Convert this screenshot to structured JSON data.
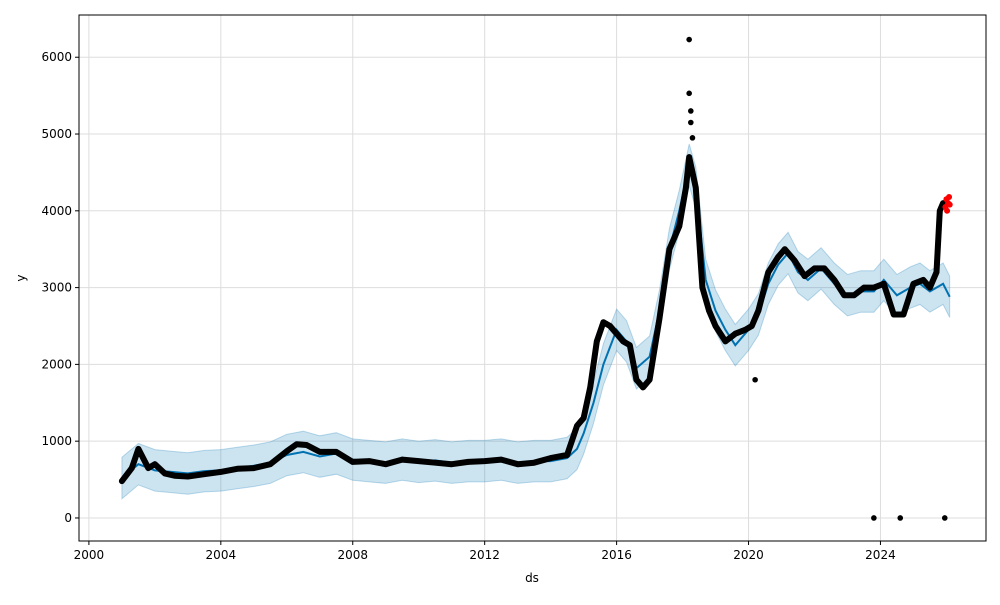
{
  "chart_data": {
    "type": "line",
    "xlabel": "ds",
    "ylabel": "y",
    "x_ticks": [
      "2000",
      "2004",
      "2008",
      "2012",
      "2016",
      "2020",
      "2024"
    ],
    "y_ticks": [
      "0",
      "1000",
      "2000",
      "3000",
      "4000",
      "5000",
      "6000"
    ],
    "xlim": [
      1999.7,
      2027.2
    ],
    "ylim": [
      -300,
      6550
    ],
    "grid": true,
    "colors": {
      "forecast": "#0072B2",
      "band": "#0072B2",
      "observed": "#000000",
      "outlier": "#ff0000",
      "grid": "#dddddd"
    },
    "forecast": {
      "x": [
        2001.0,
        2001.5,
        2002.0,
        2002.5,
        2003.0,
        2003.5,
        2004.0,
        2004.5,
        2005.0,
        2005.5,
        2006.0,
        2006.5,
        2007.0,
        2007.5,
        2008.0,
        2008.5,
        2009.0,
        2009.5,
        2010.0,
        2010.5,
        2011.0,
        2011.5,
        2012.0,
        2012.5,
        2013.0,
        2013.5,
        2014.0,
        2014.5,
        2014.8,
        2015.0,
        2015.3,
        2015.6,
        2016.0,
        2016.3,
        2016.6,
        2017.0,
        2017.3,
        2017.6,
        2017.9,
        2018.2,
        2018.4,
        2018.7,
        2019.0,
        2019.3,
        2019.6,
        2020.0,
        2020.3,
        2020.6,
        2020.9,
        2021.2,
        2021.5,
        2021.8,
        2022.2,
        2022.6,
        2023.0,
        2023.4,
        2023.8,
        2024.1,
        2024.5,
        2024.9,
        2025.2,
        2025.5,
        2025.9,
        2026.1
      ],
      "y": [
        520,
        700,
        620,
        600,
        580,
        610,
        620,
        650,
        680,
        720,
        820,
        860,
        800,
        840,
        760,
        740,
        720,
        760,
        730,
        750,
        720,
        740,
        740,
        760,
        720,
        740,
        740,
        780,
        900,
        1100,
        1500,
        2000,
        2450,
        2300,
        1950,
        2100,
        2700,
        3500,
        4000,
        4600,
        4300,
        3100,
        2700,
        2450,
        2250,
        2450,
        2650,
        3050,
        3300,
        3450,
        3200,
        3100,
        3250,
        3050,
        2900,
        2950,
        2950,
        3100,
        2900,
        3000,
        3050,
        2950,
        3050,
        2880
      ]
    },
    "band_halfwidth": 270,
    "observed": {
      "x": [
        2001.0,
        2001.3,
        2001.5,
        2001.8,
        2002.0,
        2002.3,
        2002.6,
        2003.0,
        2003.5,
        2004.0,
        2004.5,
        2005.0,
        2005.5,
        2006.0,
        2006.3,
        2006.6,
        2007.0,
        2007.5,
        2008.0,
        2008.5,
        2009.0,
        2009.5,
        2010.0,
        2010.5,
        2011.0,
        2011.5,
        2012.0,
        2012.5,
        2013.0,
        2013.5,
        2014.0,
        2014.5,
        2014.8,
        2015.0,
        2015.2,
        2015.4,
        2015.6,
        2015.8,
        2016.0,
        2016.2,
        2016.4,
        2016.6,
        2016.8,
        2017.0,
        2017.3,
        2017.6,
        2017.9,
        2018.1,
        2018.2,
        2018.3,
        2018.4,
        2018.6,
        2018.8,
        2019.0,
        2019.3,
        2019.6,
        2019.9,
        2020.1,
        2020.3,
        2020.6,
        2020.9,
        2021.1,
        2021.4,
        2021.7,
        2022.0,
        2022.3,
        2022.6,
        2022.9,
        2023.2,
        2023.5,
        2023.8,
        2024.1,
        2024.4,
        2024.7,
        2025.0,
        2025.3,
        2025.5,
        2025.7,
        2025.8,
        2025.9
      ],
      "y": [
        480,
        650,
        900,
        650,
        700,
        580,
        550,
        540,
        570,
        600,
        640,
        650,
        700,
        870,
        960,
        950,
        860,
        860,
        730,
        740,
        700,
        760,
        740,
        720,
        700,
        730,
        740,
        760,
        700,
        720,
        780,
        820,
        1200,
        1300,
        1700,
        2300,
        2550,
        2500,
        2400,
        2300,
        2250,
        1800,
        1700,
        1800,
        2600,
        3500,
        3800,
        4300,
        4700,
        4500,
        4300,
        3000,
        2700,
        2500,
        2300,
        2400,
        2450,
        2500,
        2700,
        3200,
        3400,
        3500,
        3350,
        3150,
        3250,
        3250,
        3100,
        2900,
        2900,
        3000,
        3000,
        3050,
        2650,
        2650,
        3050,
        3100,
        3000,
        3200,
        4000,
        4100
      ]
    },
    "observed_extra": {
      "x": [
        2018.2,
        2018.2,
        2018.25,
        2018.25,
        2018.3,
        2020.2,
        2023.8,
        2024.6,
        2025.95
      ],
      "y": [
        6230,
        5530,
        5300,
        5150,
        4950,
        1800,
        0,
        0,
        0
      ]
    },
    "outliers": {
      "x": [
        2025.97,
        2026.0,
        2026.02,
        2026.05,
        2026.08,
        2026.1
      ],
      "y": [
        4050,
        4150,
        4000,
        4100,
        4180,
        4080
      ]
    }
  }
}
